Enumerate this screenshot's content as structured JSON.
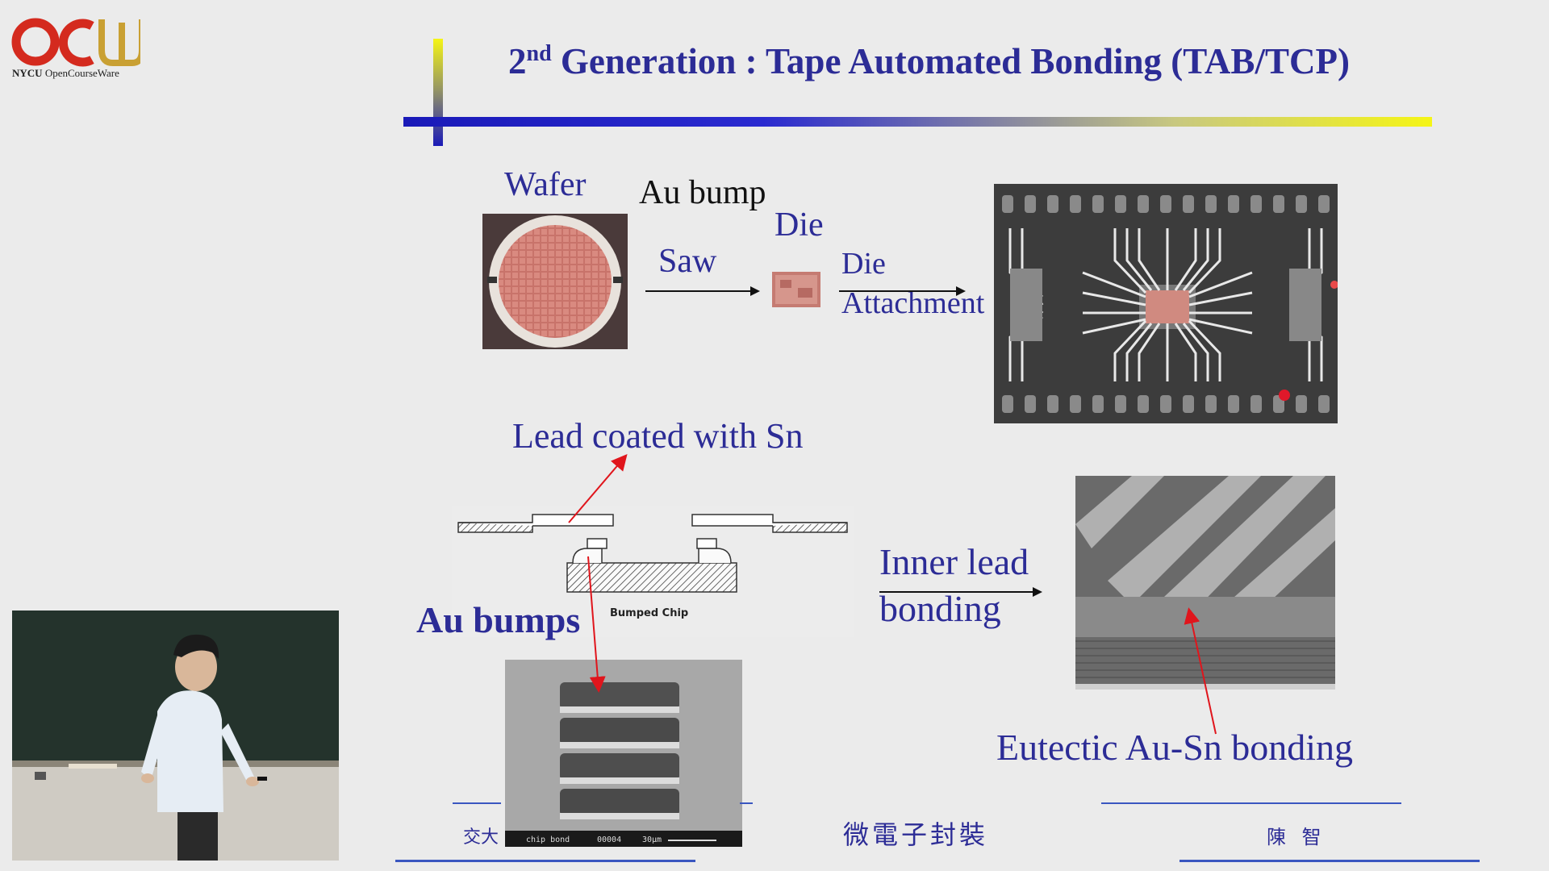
{
  "logo": {
    "subtitle_bold": "NYCU",
    "subtitle_rest": "OpenCourseWare"
  },
  "slide": {
    "title_prefix": "2",
    "title_superscript": "nd",
    "title_main": " Generation : Tape Automated Bonding (TAB/TCP)",
    "labels": {
      "wafer": "Wafer",
      "au_bump": "Au bump",
      "die": "Die",
      "saw": "Saw",
      "die_attach_1": "Die",
      "die_attach_2": "Attachment",
      "lead_coated": "Lead coated with Sn",
      "au_bumps": "Au bumps",
      "bumped_chip": "Bumped Chip",
      "inner_lead_1": "Inner lead",
      "inner_lead_2": "bonding",
      "eutectic": "Eutectic Au-Sn bonding",
      "sem_caption_1": "chip bond",
      "sem_caption_2": "00004",
      "sem_caption_3": "30μm"
    },
    "footer": {
      "left": "交大",
      "center": "微電子封裝",
      "right": "陳 智"
    }
  },
  "colors": {
    "accent": "#2c2c96",
    "logo_red": "#d42a1e",
    "logo_gold": "#c9a033",
    "callout": "#e0151c"
  }
}
